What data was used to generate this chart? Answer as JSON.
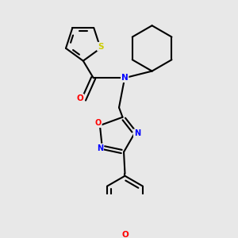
{
  "background_color": "#e8e8e8",
  "figsize": [
    3.0,
    3.0
  ],
  "dpi": 100,
  "atom_colors": {
    "S": "#cccc00",
    "N": "#0000ff",
    "O": "#ff0000",
    "C": "#000000"
  },
  "bond_color": "#000000",
  "bond_width": 1.5
}
